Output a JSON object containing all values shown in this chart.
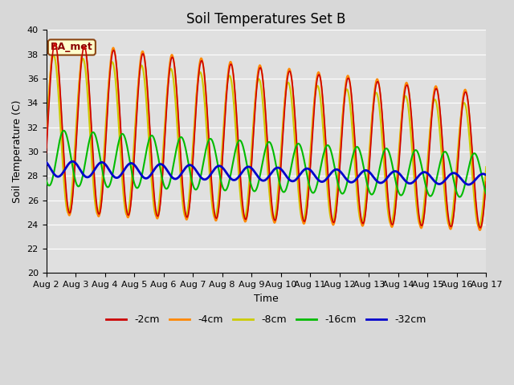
{
  "title": "Soil Temperatures Set B",
  "xlabel": "Time",
  "ylabel": "Soil Temperature (C)",
  "ylim": [
    20,
    40
  ],
  "annotation": "BA_met",
  "legend_labels": [
    "-2cm",
    "-4cm",
    "-8cm",
    "-16cm",
    "-32cm"
  ],
  "line_colors": [
    "#cc0000",
    "#ff8800",
    "#cccc00",
    "#00bb00",
    "#0000cc"
  ],
  "line_widths": [
    1.2,
    1.5,
    1.5,
    1.5,
    2.0
  ],
  "bg_color": "#e0e0e0",
  "fig_bg_color": "#d8d8d8",
  "grid_color": "#ffffff",
  "x_tick_labels": [
    "Aug 2",
    "Aug 3",
    "Aug 4",
    "Aug 5",
    "Aug 6",
    "Aug 7",
    "Aug 8",
    "Aug 9",
    "Aug 10",
    "Aug 11",
    "Aug 12",
    "Aug 13",
    "Aug 14",
    "Aug 15",
    "Aug 16",
    "Aug 17"
  ],
  "title_fontsize": 12,
  "axis_fontsize": 9,
  "tick_fontsize": 8
}
